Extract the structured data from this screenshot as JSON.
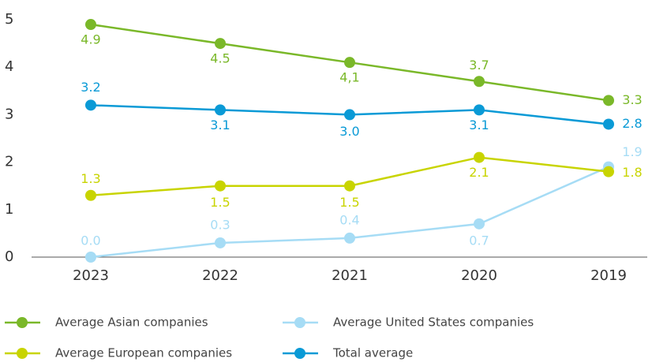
{
  "chart_data": {
    "type": "line",
    "categories": [
      "2023",
      "2022",
      "2021",
      "2020",
      "2019"
    ],
    "ylim": [
      0,
      5
    ],
    "yticks": [
      0,
      1,
      2,
      3,
      4,
      5
    ],
    "grid": false,
    "series": [
      {
        "name": "Average Asian companies",
        "color": "#7ab829",
        "values": [
          4.9,
          4.5,
          4.1,
          3.7,
          3.3
        ],
        "value_labels": [
          "4.9",
          "4.5",
          "4,1",
          "3.7",
          "3.3"
        ]
      },
      {
        "name": "Average United States companies",
        "color": "#a6dcf5",
        "values": [
          0.0,
          0.3,
          0.4,
          0.7,
          1.9
        ],
        "value_labels": [
          "0.0",
          "0.3",
          "0.4",
          "0.7",
          "1.9"
        ]
      },
      {
        "name": "Average European companies",
        "color": "#c8d400",
        "values": [
          1.3,
          1.5,
          1.5,
          2.1,
          1.8
        ],
        "value_labels": [
          "1.3",
          "1.5",
          "1.5",
          "2.1",
          "1.8"
        ]
      },
      {
        "name": "Total average",
        "color": "#0a9ad6",
        "values": [
          3.2,
          3.1,
          3.0,
          3.1,
          2.8
        ],
        "value_labels": [
          "3.2",
          "3.1",
          "3.0",
          "3.1",
          "2.8"
        ]
      }
    ]
  }
}
